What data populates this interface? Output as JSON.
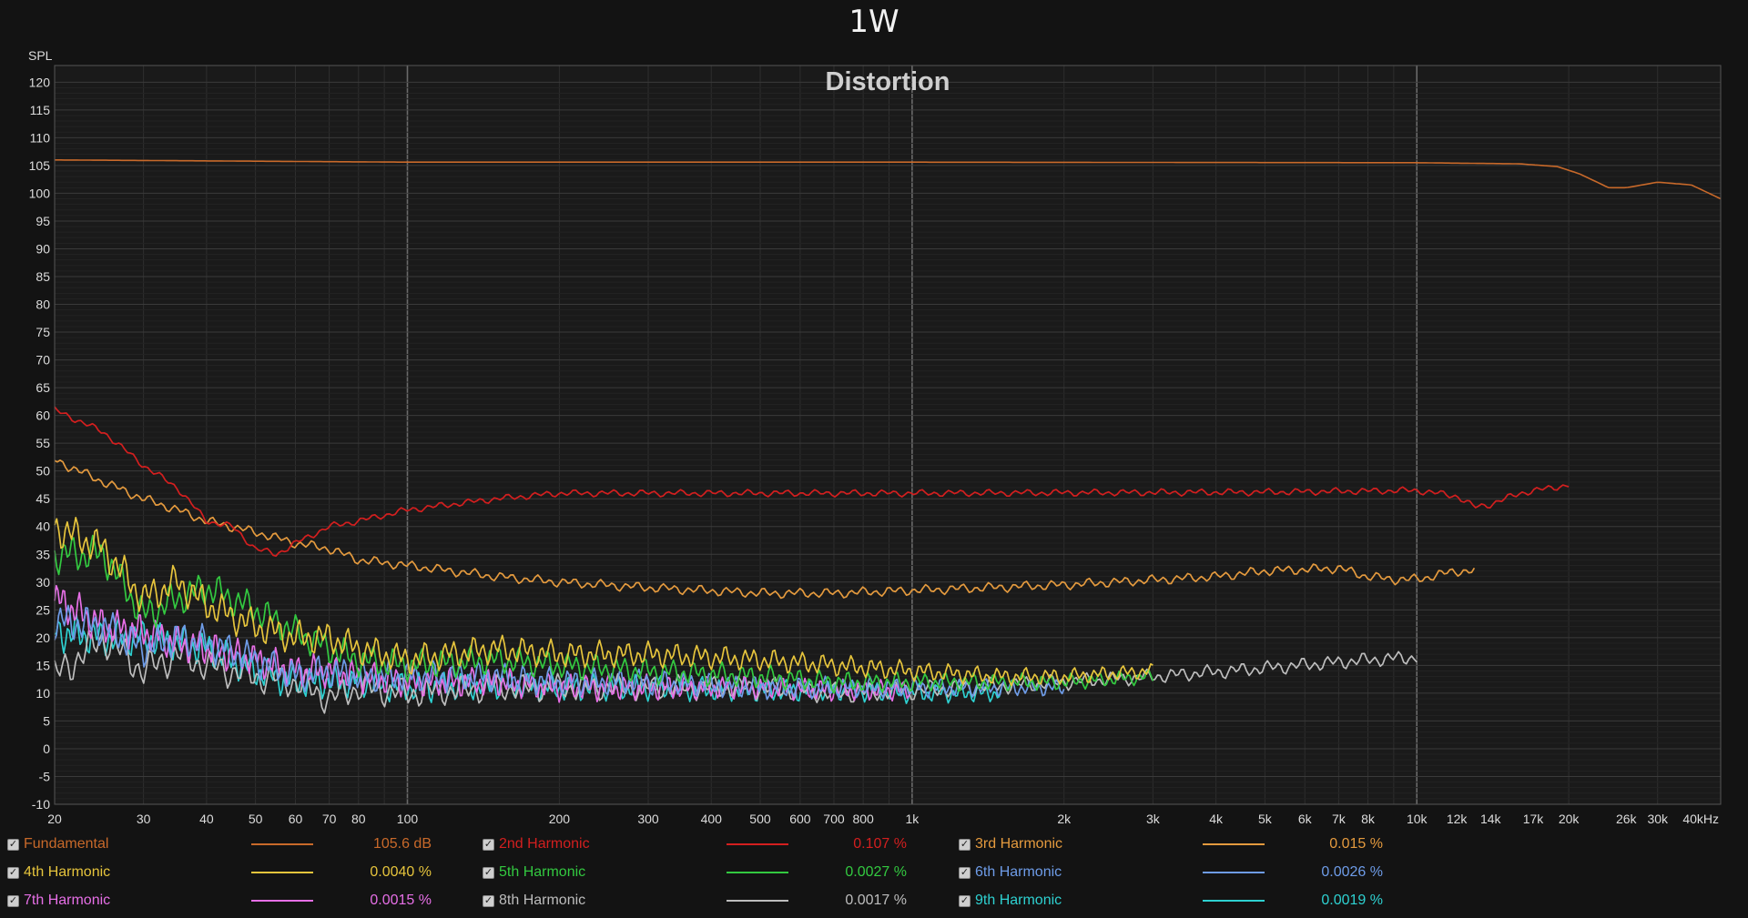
{
  "header": {
    "title": "1W"
  },
  "chart_data": {
    "type": "line",
    "title": "Distortion",
    "ylabel": "SPL",
    "xlabel": "",
    "xscale": "log",
    "xlim": [
      20,
      40000
    ],
    "ylim": [
      -10,
      123
    ],
    "grid": true,
    "x_ticks": [
      {
        "v": 20,
        "l": "20"
      },
      {
        "v": 30,
        "l": "30"
      },
      {
        "v": 40,
        "l": "40"
      },
      {
        "v": 50,
        "l": "50"
      },
      {
        "v": 60,
        "l": "60"
      },
      {
        "v": 70,
        "l": "70"
      },
      {
        "v": 80,
        "l": "80"
      },
      {
        "v": 100,
        "l": "100"
      },
      {
        "v": 200,
        "l": "200"
      },
      {
        "v": 300,
        "l": "300"
      },
      {
        "v": 400,
        "l": "400"
      },
      {
        "v": 500,
        "l": "500"
      },
      {
        "v": 600,
        "l": "600"
      },
      {
        "v": 700,
        "l": "700"
      },
      {
        "v": 800,
        "l": "800"
      },
      {
        "v": 1000,
        "l": "1k"
      },
      {
        "v": 2000,
        "l": "2k"
      },
      {
        "v": 3000,
        "l": "3k"
      },
      {
        "v": 4000,
        "l": "4k"
      },
      {
        "v": 5000,
        "l": "5k"
      },
      {
        "v": 6000,
        "l": "6k"
      },
      {
        "v": 7000,
        "l": "7k"
      },
      {
        "v": 8000,
        "l": "8k"
      },
      {
        "v": 10000,
        "l": "10k"
      },
      {
        "v": 12000,
        "l": "12k"
      },
      {
        "v": 14000,
        "l": "14k"
      },
      {
        "v": 17000,
        "l": "17k"
      },
      {
        "v": 20000,
        "l": "20k"
      },
      {
        "v": 26000,
        "l": "26k"
      },
      {
        "v": 30000,
        "l": "30k"
      },
      {
        "v": 40000,
        "l": "40kHz"
      }
    ],
    "y_ticks": [
      120,
      115,
      110,
      105,
      100,
      95,
      90,
      85,
      80,
      75,
      70,
      65,
      60,
      55,
      50,
      45,
      40,
      35,
      30,
      25,
      20,
      15,
      10,
      5,
      0,
      -5,
      -10
    ],
    "series": [
      {
        "name": "Fundamental",
        "color": "#c8692a",
        "value": "105.6 dB",
        "x": [
          20,
          100,
          1000,
          10000,
          16000,
          19000,
          21000,
          24000,
          26000,
          30000,
          35000,
          40000
        ],
        "y": [
          106,
          105.6,
          105.6,
          105.5,
          105.3,
          104.8,
          103.5,
          101,
          101,
          102,
          101.5,
          99
        ]
      },
      {
        "name": "2nd Harmonic",
        "color": "#d31f1f",
        "value": "0.107 %",
        "x": [
          20,
          25,
          30,
          35,
          40,
          45,
          50,
          55,
          60,
          70,
          80,
          100,
          150,
          200,
          300,
          500,
          1000,
          5000,
          10000,
          12000,
          13000,
          14000,
          16000,
          20000
        ],
        "y": [
          61,
          57,
          51,
          47,
          41,
          40,
          36,
          35,
          37,
          40,
          41,
          43,
          45,
          46,
          46,
          46,
          46,
          46.2,
          46.5,
          45.5,
          43.5,
          44,
          46,
          47.5
        ]
      },
      {
        "name": "3rd Harmonic",
        "color": "#e49a3e",
        "value": "0.015 %",
        "x": [
          20,
          25,
          30,
          35,
          40,
          50,
          60,
          70,
          80,
          100,
          150,
          200,
          300,
          500,
          700,
          1000,
          2000,
          4000,
          5000,
          7000,
          8000,
          9000,
          10000,
          12000,
          13000
        ],
        "y": [
          52,
          48,
          45,
          43,
          41,
          39,
          37,
          36,
          34,
          33,
          31,
          30,
          29,
          28,
          28,
          28.5,
          29.5,
          31,
          32,
          32.5,
          31,
          30.5,
          30.5,
          32,
          32
        ]
      },
      {
        "name": "4th Harmonic",
        "color": "#e6c43c",
        "value": "0.0040 %",
        "x": [
          20,
          25,
          30,
          35,
          40,
          50,
          60,
          70,
          80,
          100,
          150,
          200,
          300,
          500,
          700,
          1000,
          1500,
          2000,
          3000
        ],
        "y": [
          40,
          36,
          27,
          30,
          26,
          22,
          20,
          20,
          18,
          16,
          18,
          17,
          17,
          16,
          15,
          14,
          13,
          13,
          14
        ]
      },
      {
        "name": "5th Harmonic",
        "color": "#33c940",
        "value": "0.0027 %",
        "x": [
          20,
          25,
          30,
          35,
          40,
          50,
          60,
          70,
          80,
          100,
          150,
          200,
          300,
          500,
          700,
          1000,
          1500,
          2000,
          3000
        ],
        "y": [
          35,
          35,
          24,
          27,
          29,
          25,
          21,
          18,
          16,
          15,
          16,
          15,
          14,
          13,
          12,
          12,
          12,
          12,
          13
        ]
      },
      {
        "name": "6th Harmonic",
        "color": "#6e9ce8",
        "value": "0.0026 %",
        "x": [
          20,
          25,
          30,
          35,
          40,
          50,
          60,
          70,
          80,
          100,
          150,
          200,
          300,
          500,
          700,
          1000,
          1500,
          2000
        ],
        "y": [
          23,
          22,
          18,
          20,
          19,
          16,
          13,
          14,
          13,
          13,
          13,
          12,
          12,
          11,
          11,
          11,
          11,
          11
        ]
      },
      {
        "name": "7th Harmonic",
        "color": "#e66fe6",
        "value": "0.0015 %",
        "x": [
          20,
          25,
          30,
          35,
          40,
          50,
          60,
          70,
          80,
          100,
          150,
          200,
          300,
          500,
          700,
          1000
        ],
        "y": [
          27,
          22,
          21,
          19,
          18,
          16,
          14,
          14,
          13,
          12,
          12,
          11,
          11,
          11,
          10.5,
          10.5
        ]
      },
      {
        "name": "8th Harmonic",
        "color": "#bdbdbd",
        "value": "0.0017 %",
        "x": [
          20,
          25,
          30,
          35,
          40,
          50,
          60,
          70,
          80,
          100,
          150,
          200,
          300,
          500,
          700,
          1000,
          2000,
          3000,
          5000,
          8000,
          10000
        ],
        "y": [
          13,
          20,
          14,
          17,
          15,
          13,
          12,
          9,
          11,
          10,
          11,
          11,
          11,
          11,
          10,
          10.5,
          12,
          13,
          14.5,
          16,
          16.5
        ]
      },
      {
        "name": "9th Harmonic",
        "color": "#2ed1d1",
        "value": "0.0019 %",
        "x": [
          20,
          25,
          30,
          35,
          40,
          50,
          60,
          70,
          80,
          100,
          150,
          200,
          300,
          500,
          700,
          1000,
          1500
        ],
        "y": [
          21,
          20,
          20,
          19,
          18,
          14,
          12,
          12,
          12,
          11,
          11.5,
          11,
          11,
          10.5,
          10.5,
          10,
          10
        ]
      }
    ]
  }
}
